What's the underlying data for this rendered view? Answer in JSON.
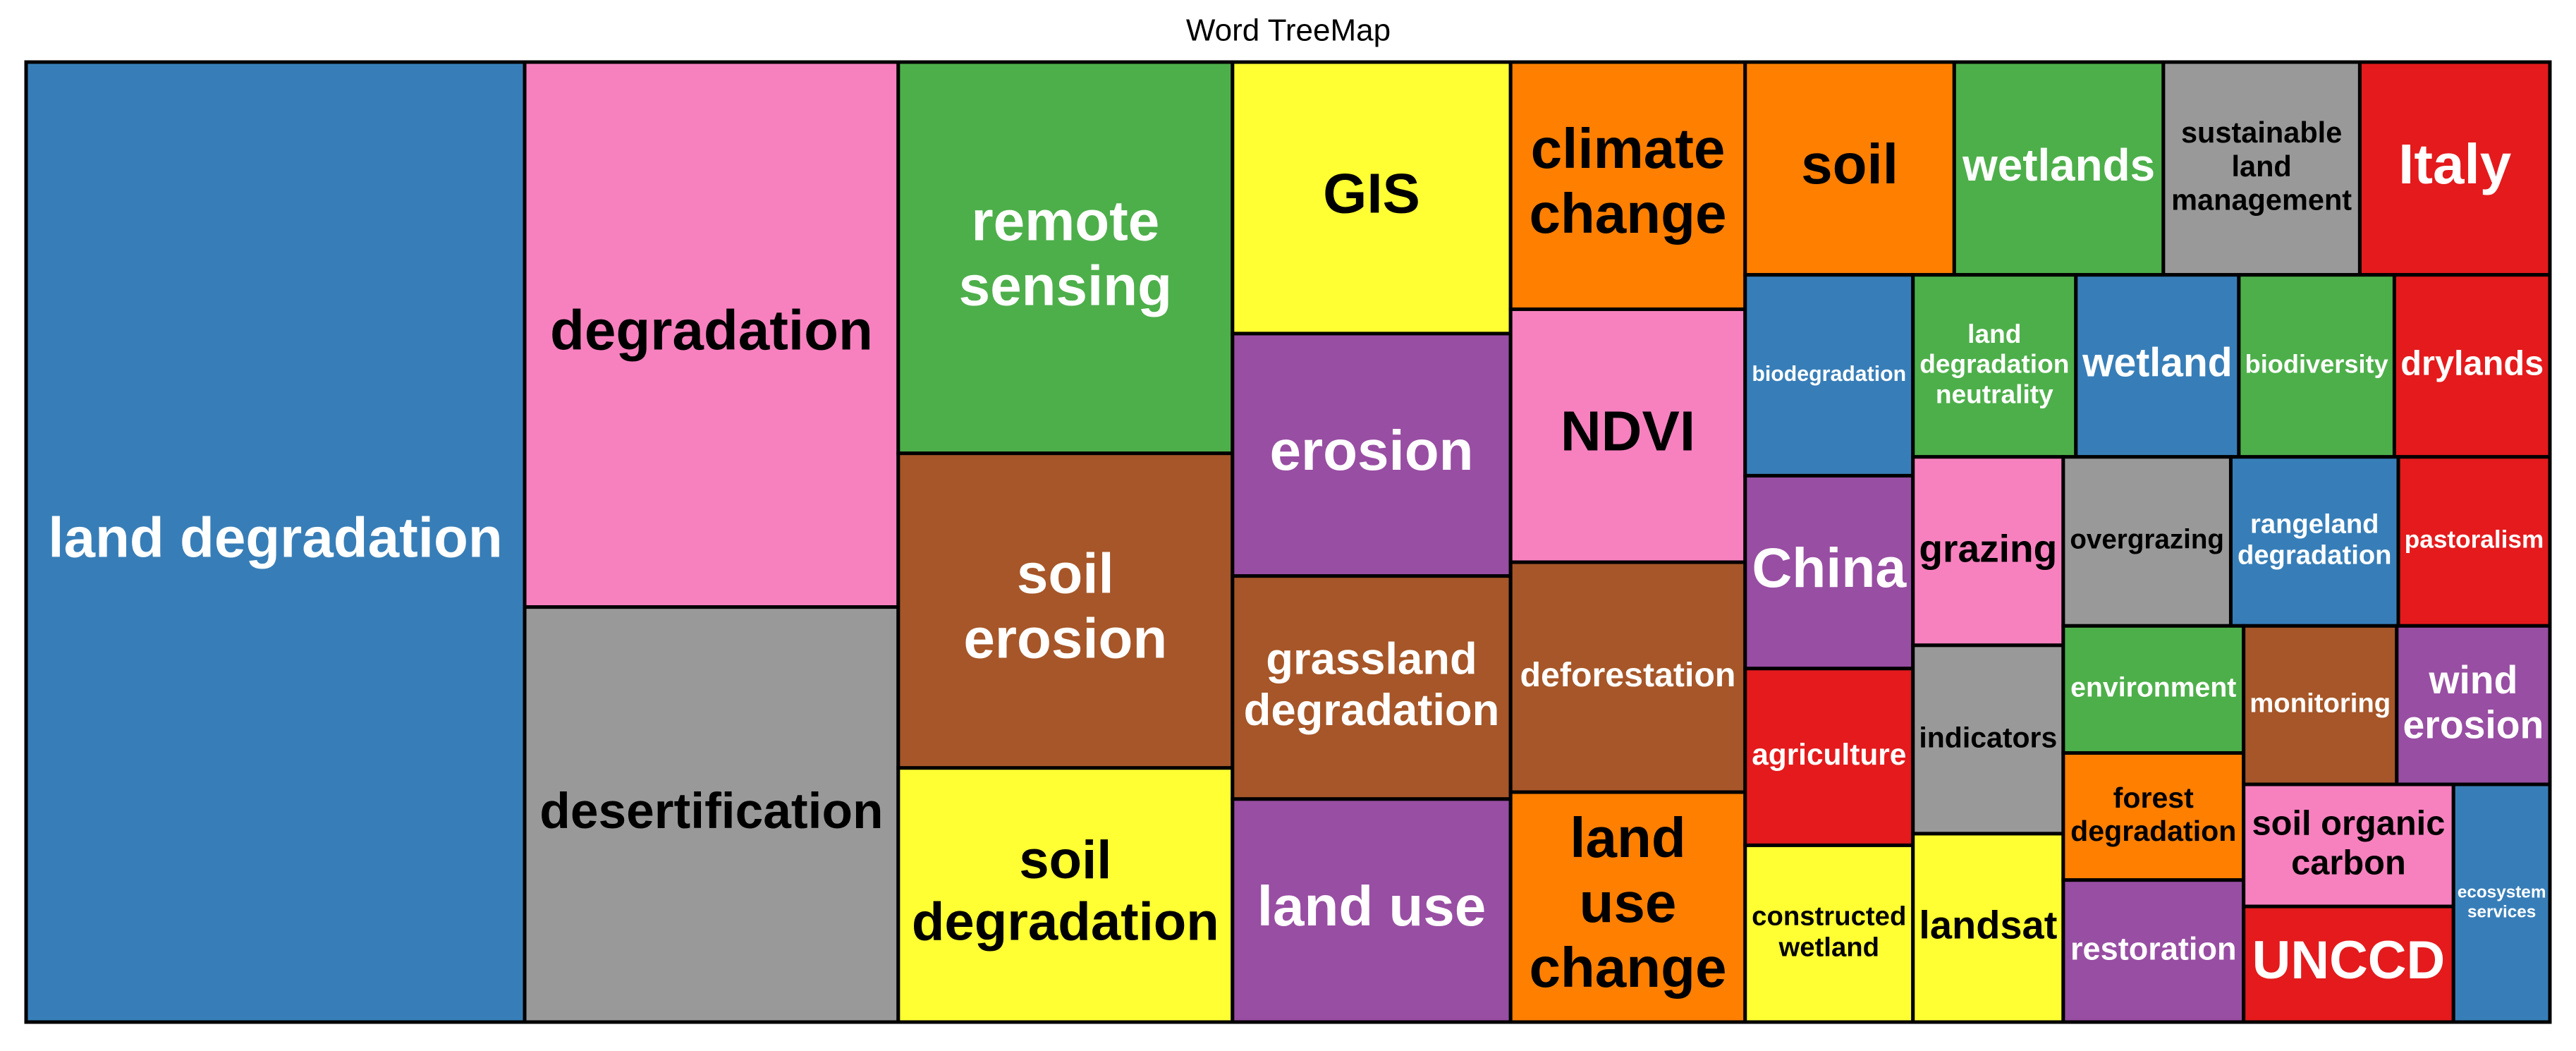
{
  "chart_data": {
    "type": "treemap",
    "title": "Word TreeMap",
    "categories": [
      "land degradation",
      "degradation",
      "desertification",
      "remote sensing",
      "soil erosion",
      "soil degradation",
      "GIS",
      "erosion",
      "grassland degradation",
      "land use",
      "climate change",
      "NDVI",
      "deforestation",
      "land use change",
      "soil",
      "wetlands",
      "sustainable land management",
      "Italy",
      "biodegradation",
      "China",
      "agriculture",
      "constructed wetland",
      "land degradation neutrality",
      "wetland",
      "biodiversity",
      "drylands",
      "grazing",
      "indicators",
      "landsat",
      "overgrazing",
      "rangeland degradation",
      "pastoralism",
      "environment",
      "forest degradation",
      "restoration",
      "monitoring",
      "wind erosion",
      "soil organic carbon",
      "UNCCD",
      "ecosystem services"
    ],
    "values": [
      355,
      151,
      115,
      97,
      78,
      63,
      56,
      50,
      46,
      46,
      43,
      44,
      40,
      40,
      33,
      33,
      31,
      30,
      25,
      24,
      22,
      22,
      22,
      22,
      21,
      21,
      21,
      21,
      21,
      21,
      21,
      19,
      17,
      17,
      19,
      18,
      18,
      19,
      18,
      17
    ],
    "colors": [
      "#377EB8",
      "#F781BF",
      "#999999",
      "#4DAF4A",
      "#A65628",
      "#FFFF33",
      "#FFFF33",
      "#984EA3",
      "#A65628",
      "#984EA3",
      "#FF7F00",
      "#F781BF",
      "#A65628",
      "#FF7F00",
      "#FF7F00",
      "#4DAF4A",
      "#999999",
      "#E41A1C",
      "#377EB8",
      "#984EA3",
      "#E41A1C",
      "#FFFF33",
      "#4DAF4A",
      "#377EB8",
      "#4DAF4A",
      "#E41A1C",
      "#F781BF",
      "#999999",
      "#FFFF33",
      "#999999",
      "#377EB8",
      "#E41A1C",
      "#4DAF4A",
      "#FF7F00",
      "#984EA3",
      "#A65628",
      "#984EA3",
      "#F781BF",
      "#E41A1C",
      "#377EB8"
    ]
  }
}
